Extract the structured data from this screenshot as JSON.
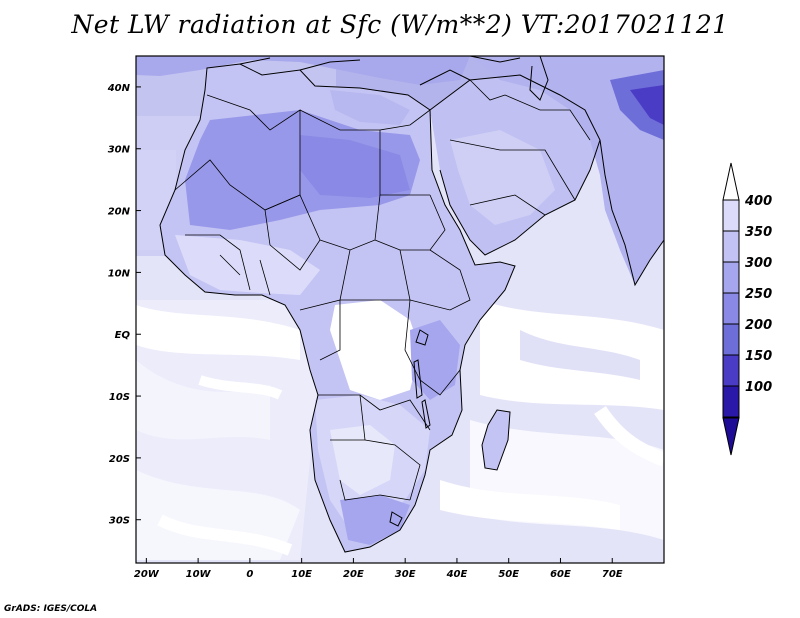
{
  "title": "Net LW radiation at Sfc (W/m**2) VT:2017021121",
  "credit": "GrADS: IGES/COLA",
  "map": {
    "lon_range": [
      -22,
      80
    ],
    "lat_range": [
      -37,
      45
    ],
    "lon_ticks": [
      {
        "value": -20,
        "label": "20W"
      },
      {
        "value": -10,
        "label": "10W"
      },
      {
        "value": 0,
        "label": "0"
      },
      {
        "value": 10,
        "label": "10E"
      },
      {
        "value": 20,
        "label": "20E"
      },
      {
        "value": 30,
        "label": "30E"
      },
      {
        "value": 40,
        "label": "40E"
      },
      {
        "value": 50,
        "label": "50E"
      },
      {
        "value": 60,
        "label": "60E"
      },
      {
        "value": 70,
        "label": "70E"
      }
    ],
    "lat_ticks": [
      {
        "value": 40,
        "label": "40N"
      },
      {
        "value": 30,
        "label": "30N"
      },
      {
        "value": 20,
        "label": "20N"
      },
      {
        "value": 10,
        "label": "10N"
      },
      {
        "value": 0,
        "label": "EQ"
      },
      {
        "value": -10,
        "label": "10S"
      },
      {
        "value": -20,
        "label": "20S"
      },
      {
        "value": -30,
        "label": "30S"
      }
    ]
  },
  "colorbar": {
    "levels": [
      {
        "label": "400",
        "color": "#dcdcfa"
      },
      {
        "label": "350",
        "color": "#c2c2f4"
      },
      {
        "label": "300",
        "color": "#a6a6ee"
      },
      {
        "label": "250",
        "color": "#8a8ae6"
      },
      {
        "label": "200",
        "color": "#6e6ed9"
      },
      {
        "label": "150",
        "color": "#4a3cc4"
      },
      {
        "label": "100",
        "color": "#2a18a8"
      }
    ],
    "top_color": "#ffffff",
    "bottom_color": "#1e0c96"
  }
}
